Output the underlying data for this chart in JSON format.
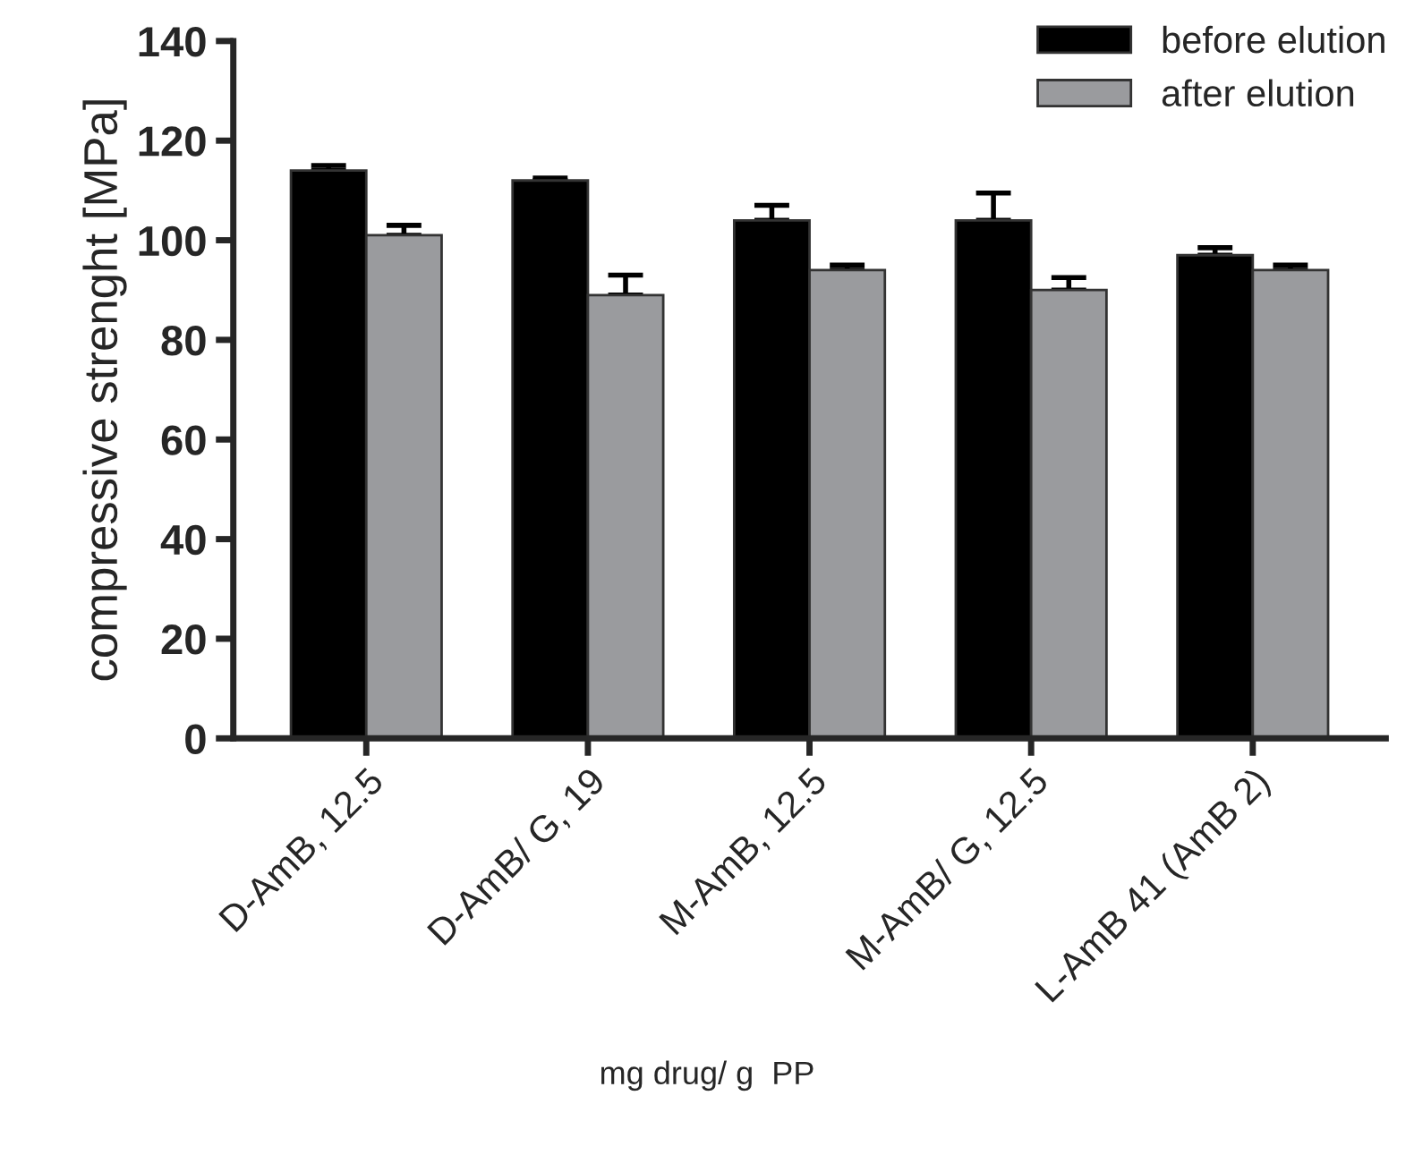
{
  "chart_data": {
    "type": "bar",
    "categories": [
      "D-AmB, 12.5",
      "D-AmB/ G, 19",
      "M-AmB, 12.5",
      "M-AmB/ G, 12.5",
      "L-AmB 41 (AmB 2)"
    ],
    "series": [
      {
        "name": "before elution",
        "color": "#000000",
        "values": [
          114,
          112,
          104,
          104,
          97
        ],
        "errors": [
          [
            114,
            115
          ],
          [
            112,
            112.5
          ],
          [
            104,
            107
          ],
          [
            104,
            109.5
          ],
          [
            97,
            98.5
          ]
        ]
      },
      {
        "name": "after elution",
        "color": "#9a9b9e",
        "values": [
          101,
          89,
          94,
          90,
          94
        ],
        "errors": [
          [
            101,
            103
          ],
          [
            89,
            93
          ],
          [
            94,
            95
          ],
          [
            90,
            92.5
          ],
          [
            94,
            95
          ]
        ]
      }
    ],
    "xlabel": "mg drug/ g  PP",
    "ylabel": "compressive strenght [MPa]",
    "ylim": [
      0,
      140
    ],
    "yticks": [
      0,
      20,
      40,
      60,
      80,
      100,
      120,
      140
    ],
    "legend": "top right",
    "grid": false
  }
}
